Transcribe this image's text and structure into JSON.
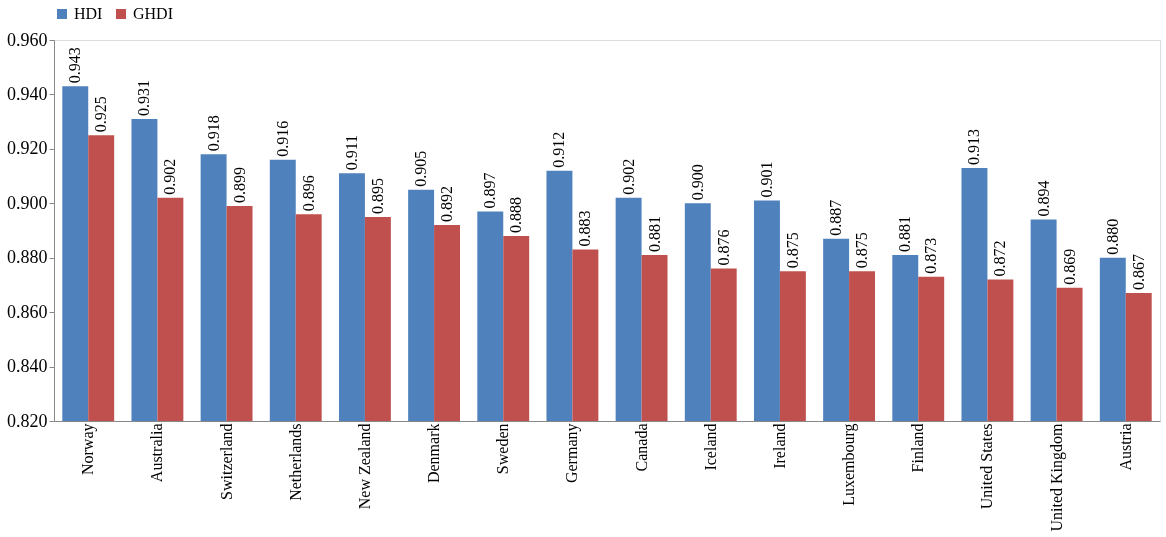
{
  "chart_data": {
    "type": "bar",
    "categories": [
      "Norway",
      "Australia",
      "Switzerland",
      "Netherlands",
      "New Zealand",
      "Denmark",
      "Sweden",
      "Germany",
      "Canada",
      "Iceland",
      "Ireland",
      "Luxembourg",
      "Finland",
      "United States",
      "United Kingdom",
      "Austria"
    ],
    "series": [
      {
        "name": "HDI",
        "color": "#4f81bd",
        "values": [
          0.943,
          0.931,
          0.918,
          0.916,
          0.911,
          0.905,
          0.897,
          0.912,
          0.902,
          0.9,
          0.901,
          0.887,
          0.881,
          0.913,
          0.894,
          0.88
        ],
        "value_labels": [
          "0.943",
          "0.931",
          "0.918",
          "0.916",
          "0.911",
          "0.905",
          "0.897",
          "0.912",
          "0.902",
          "0.900",
          "0.901",
          "0.887",
          "0.881",
          "0.913",
          "0.894",
          "0.880"
        ]
      },
      {
        "name": "GHDI",
        "color": "#c0504d",
        "values": [
          0.925,
          0.902,
          0.899,
          0.896,
          0.895,
          0.892,
          0.888,
          0.883,
          0.881,
          0.876,
          0.875,
          0.875,
          0.873,
          0.872,
          0.869,
          0.867
        ],
        "value_labels": [
          "0.925",
          "0.902",
          "0.899",
          "0.896",
          "0.895",
          "0.892",
          "0.888",
          "0.883",
          "0.881",
          "0.876",
          "0.875",
          "0.875",
          "0.873",
          "0.872",
          "0.869",
          "0.867"
        ]
      }
    ],
    "ylim": [
      0.82,
      0.96
    ],
    "yticks": [
      {
        "value": 0.82,
        "label": "0.820"
      },
      {
        "value": 0.84,
        "label": "0.840"
      },
      {
        "value": 0.86,
        "label": "0.860"
      },
      {
        "value": 0.88,
        "label": "0.880"
      },
      {
        "value": 0.9,
        "label": "0.900"
      },
      {
        "value": 0.92,
        "label": "0.920"
      },
      {
        "value": 0.94,
        "label": "0.940"
      },
      {
        "value": 0.96,
        "label": "0.960"
      }
    ],
    "grid": false,
    "legend": "top"
  }
}
